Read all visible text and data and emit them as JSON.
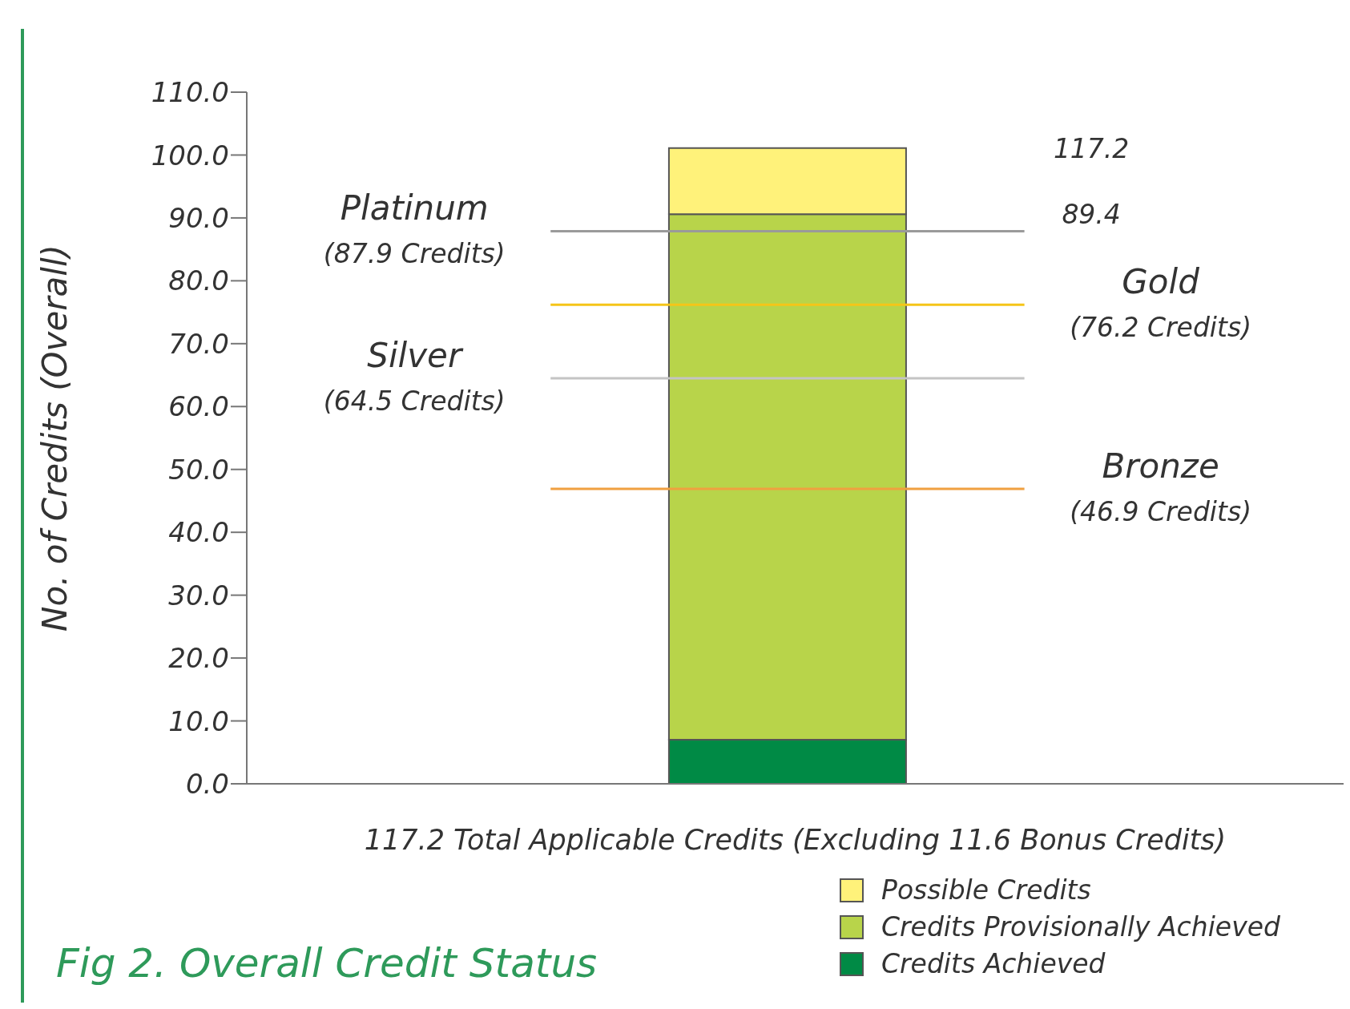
{
  "chart_data": {
    "type": "bar",
    "title": "Fig 2. Overall Credit Status",
    "xlabel": "117.2 Total Applicable Credits (Excluding 11.6 Bonus Credits)",
    "ylabel": "No. of Credits (Overall)",
    "categories": [
      null
    ],
    "stacked": true,
    "series": [
      {
        "name": "Credits Achieved",
        "color": "#008a45",
        "values": [
          7.0
        ]
      },
      {
        "name": "Credits Provisionally Achieved",
        "color": "#b8d44a",
        "values": [
          83.6
        ]
      },
      {
        "name": "Possible Credits",
        "color": "#fff27a",
        "values": [
          10.5
        ]
      }
    ],
    "ylim": [
      0,
      110
    ],
    "yticks": [
      {
        "value": 0,
        "label": "0.0"
      },
      {
        "value": 10,
        "label": "10.0"
      },
      {
        "value": 20,
        "label": "20.0"
      },
      {
        "value": 30,
        "label": "30.0"
      },
      {
        "value": 40,
        "label": "40.0"
      },
      {
        "value": 50,
        "label": "50.0"
      },
      {
        "value": 60,
        "label": "60.0"
      },
      {
        "value": 70,
        "label": "70.0"
      },
      {
        "value": 80,
        "label": "80.0"
      },
      {
        "value": 90,
        "label": "90.0"
      },
      {
        "value": 100,
        "label": "100.0"
      },
      {
        "value": 110,
        "label": "110.0"
      }
    ],
    "ref_lines": [
      {
        "axis": "y",
        "value": 87.9,
        "label": "Platinum\n(87.9 Credits)",
        "color": "#9a9a9a"
      },
      {
        "axis": "y",
        "value": 76.2,
        "label": "Gold\n(76.2 Credits)",
        "color": "#f5c518"
      },
      {
        "axis": "y",
        "value": 64.5,
        "label": "Silver\n(64.5 Credits)",
        "color": "#c4c4c4"
      },
      {
        "axis": "y",
        "value": 46.9,
        "label": "Bronze\n(46.9 Credits)",
        "color": "#f0a040"
      }
    ],
    "annotations": [
      "117.2",
      "89.4"
    ],
    "legend": "bottom right"
  }
}
